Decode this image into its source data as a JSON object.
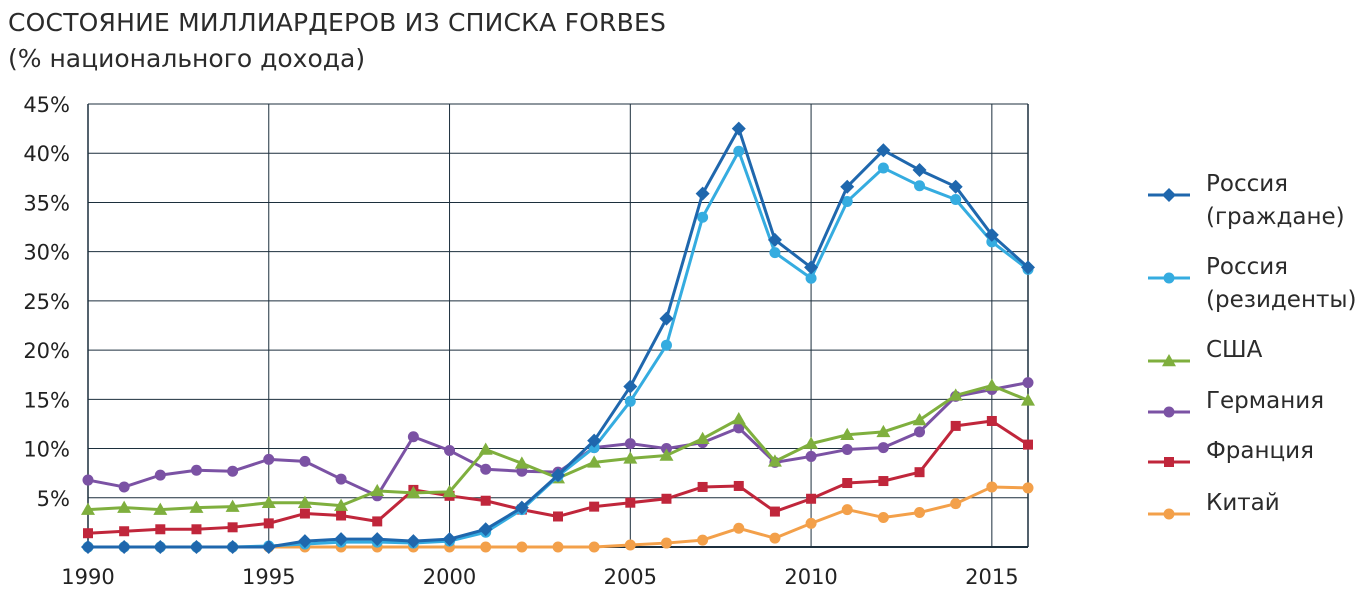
{
  "chart_data": {
    "type": "line",
    "title": "СОСТОЯНИЕ МИЛЛИАРДЕРОВ ИЗ СПИСКА FORBES",
    "subtitle": "(% национального дохода)",
    "xlabel": "",
    "ylabel": "",
    "xlim": [
      1990,
      2016
    ],
    "ylim": [
      0,
      45
    ],
    "grid": true,
    "legend_position": "right",
    "x_ticks": [
      1990,
      1995,
      2000,
      2005,
      2010,
      2015
    ],
    "x_tick_labels": [
      "1990",
      "1995",
      "2000",
      "2005",
      "2010",
      "2015"
    ],
    "y_ticks": [
      5,
      10,
      15,
      20,
      25,
      30,
      35,
      40,
      45
    ],
    "y_tick_labels": [
      "5%",
      "10%",
      "15%",
      "20%",
      "25%",
      "30%",
      "35%",
      "40%",
      "45%"
    ],
    "x": [
      1990,
      1991,
      1992,
      1993,
      1994,
      1995,
      1996,
      1997,
      1998,
      1999,
      2000,
      2001,
      2002,
      2003,
      2004,
      2005,
      2006,
      2007,
      2008,
      2009,
      2010,
      2011,
      2012,
      2013,
      2014,
      2015,
      2016
    ],
    "series": [
      {
        "name": "Россия (граждане)",
        "legend_lines": [
          "Россия",
          "(граждане)"
        ],
        "color": "#1f67ad",
        "marker": "diamond",
        "values": [
          0,
          0,
          0,
          0,
          0,
          0,
          0.6,
          0.8,
          0.8,
          0.6,
          0.8,
          1.8,
          4.0,
          7.3,
          10.8,
          16.3,
          23.2,
          35.9,
          42.5,
          31.2,
          28.4,
          36.6,
          40.3,
          38.3,
          36.6,
          31.7,
          28.4
        ]
      },
      {
        "name": "Россия (резиденты)",
        "legend_lines": [
          "Россия",
          "(резиденты)"
        ],
        "color": "#35ace0",
        "marker": "circle",
        "values": [
          0,
          0,
          0,
          0,
          0,
          0.1,
          0.3,
          0.5,
          0.5,
          0.4,
          0.6,
          1.5,
          3.8,
          7.2,
          10.1,
          14.8,
          20.5,
          33.5,
          40.2,
          29.9,
          27.3,
          35.1,
          38.5,
          36.7,
          35.3,
          31.0,
          28.2
        ]
      },
      {
        "name": "США",
        "legend_lines": [
          "США"
        ],
        "color": "#7faf3e",
        "marker": "triangle",
        "values": [
          3.8,
          4.0,
          3.8,
          4.0,
          4.1,
          4.5,
          4.5,
          4.2,
          5.7,
          5.5,
          5.6,
          9.9,
          8.5,
          7.0,
          8.6,
          9.0,
          9.3,
          11.0,
          13.0,
          8.7,
          10.5,
          11.4,
          11.7,
          12.9,
          15.4,
          16.4,
          14.9
        ]
      },
      {
        "name": "Германия",
        "legend_lines": [
          "Германия"
        ],
        "color": "#7b52a4",
        "marker": "circle",
        "values": [
          6.8,
          6.1,
          7.3,
          7.8,
          7.7,
          8.9,
          8.7,
          6.9,
          5.2,
          11.2,
          9.8,
          7.9,
          7.7,
          7.6,
          10.1,
          10.5,
          10.0,
          10.6,
          12.1,
          8.6,
          9.2,
          9.9,
          10.1,
          11.7,
          15.3,
          16.0,
          16.7
        ]
      },
      {
        "name": "Франция",
        "legend_lines": [
          "Франция"
        ],
        "color": "#c0263b",
        "marker": "square",
        "values": [
          1.4,
          1.6,
          1.8,
          1.8,
          2.0,
          2.4,
          3.4,
          3.2,
          2.6,
          5.8,
          5.2,
          4.7,
          3.8,
          3.1,
          4.1,
          4.5,
          4.9,
          6.1,
          6.2,
          3.6,
          4.9,
          6.5,
          6.7,
          7.6,
          12.3,
          12.8,
          10.4
        ]
      },
      {
        "name": "Китай",
        "legend_lines": [
          "Китай"
        ],
        "color": "#f3a04a",
        "marker": "circle",
        "values": [
          0,
          0,
          0,
          0,
          0,
          0,
          0,
          0,
          0,
          0,
          0,
          0,
          0,
          0,
          0,
          0.2,
          0.4,
          0.7,
          1.9,
          0.9,
          2.4,
          3.8,
          3.0,
          3.5,
          4.4,
          6.1,
          6.0
        ]
      }
    ]
  }
}
